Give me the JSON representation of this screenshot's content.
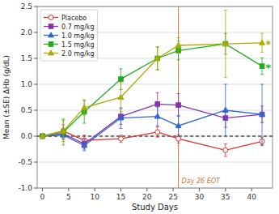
{
  "chart_data": {
    "type": "line",
    "title": "",
    "xlabel": "Study Days",
    "ylabel": "Mean (±SE) ΔHb (g/dL)",
    "xlim": [
      -1,
      44
    ],
    "ylim": [
      -1.0,
      2.5
    ],
    "xticks": [
      0,
      5,
      10,
      15,
      20,
      25,
      30,
      35,
      40
    ],
    "yticks": [
      {
        "value": -1.0,
        "label": "-1.0"
      },
      -0.5,
      {
        "value": 0.0,
        "label": "0.0"
      },
      0.5,
      {
        "value": 1.0,
        "label": "1.0"
      },
      1.5,
      {
        "value": 2.0,
        "label": "2.0"
      },
      2.5
    ],
    "grid": "y",
    "legend": "upper-left",
    "x": [
      0,
      4,
      8,
      15,
      22,
      26,
      35,
      42
    ],
    "series": [
      {
        "name": "Placebo",
        "color": "#d93333",
        "marker": "open-circle",
        "line_style": "solid",
        "values": [
          0.0,
          0.1,
          -0.08,
          -0.05,
          0.08,
          -0.05,
          -0.27,
          -0.1
        ],
        "errors": [
          0.0,
          0.12,
          0.1,
          0.07,
          0.1,
          0.08,
          0.12,
          0.08
        ]
      },
      {
        "name": "0.7 mg/kg",
        "color": "#8833aa",
        "marker": "square",
        "line_style": "solid",
        "values": [
          0.0,
          0.05,
          -0.15,
          0.38,
          0.62,
          0.6,
          0.35,
          0.42
        ],
        "errors": [
          0.0,
          0.1,
          0.1,
          0.15,
          0.22,
          0.22,
          0.18,
          0.16
        ]
      },
      {
        "name": "1.0 mg/kg",
        "color": "#3366cc",
        "marker": "triangle",
        "line_style": "solid",
        "values": [
          0.0,
          0.02,
          -0.18,
          0.35,
          0.38,
          0.2,
          0.5,
          0.42
        ],
        "errors": [
          0.0,
          0.08,
          0.1,
          0.2,
          0.18,
          0.2,
          0.5,
          0.58
        ]
      },
      {
        "name": "1.5 mg/kg",
        "color": "#22aa22",
        "marker": "square",
        "line_style": "solid",
        "values": [
          0.0,
          0.08,
          0.47,
          1.1,
          1.5,
          1.65,
          1.78,
          1.35
        ],
        "errors": [
          0.0,
          0.25,
          0.22,
          0.2,
          0.22,
          0.18,
          0.2,
          0.16
        ]
      },
      {
        "name": "2.0 mg/kg",
        "color": "#aaaa00",
        "marker": "triangle",
        "line_style": "solid",
        "values": [
          0.0,
          0.1,
          0.55,
          0.75,
          1.5,
          1.75,
          1.78,
          1.8
        ],
        "errors": [
          0.0,
          0.2,
          0.15,
          0.28,
          0.22,
          0.15,
          0.65,
          0.18
        ]
      }
    ],
    "reference_lines": [
      {
        "axis": "y",
        "value": 0,
        "color": "#000000",
        "line_style": "dashed"
      },
      {
        "axis": "x",
        "value": 26,
        "color": "#c87941",
        "line_style": "solid",
        "label": "Day 26 EOT"
      }
    ],
    "annotations": [
      {
        "text": "*",
        "x": 42.5,
        "y": 1.8,
        "color": "#aaaa00"
      },
      {
        "text": "*",
        "x": 42.5,
        "y": 1.35,
        "color": "#22aa22"
      }
    ]
  }
}
